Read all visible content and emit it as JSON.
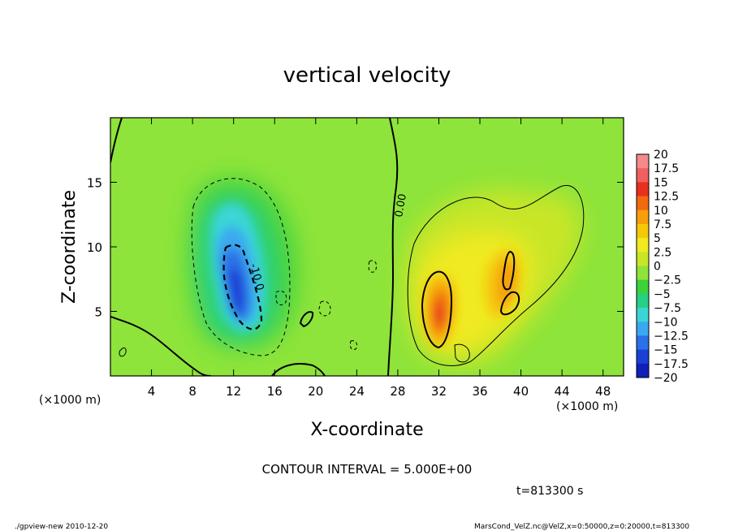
{
  "chart_data": {
    "type": "heatmap",
    "title": "vertical velocity",
    "xlabel": "X-coordinate",
    "ylabel": "Z-coordinate",
    "x_unit_note": "(×1000 m)",
    "y_unit_note": "(×1000 m)",
    "xlim": [
      0,
      50
    ],
    "ylim": [
      0,
      20
    ],
    "x_ticks": [
      4,
      8,
      12,
      16,
      20,
      24,
      28,
      32,
      36,
      40,
      44,
      48
    ],
    "y_ticks": [
      5,
      10,
      15
    ],
    "colorbar": {
      "levels": [
        20,
        17.5,
        15,
        12.5,
        10,
        7.5,
        5,
        2.5,
        0,
        -2.5,
        -5,
        -7.5,
        -10,
        -12.5,
        -15,
        -17.5,
        -20
      ],
      "colors": [
        "#f58a8a",
        "#f06060",
        "#e8301e",
        "#f06a10",
        "#f5a00a",
        "#f5c80a",
        "#f0ea20",
        "#c8e628",
        "#8ee43a",
        "#3cd23c",
        "#26d084",
        "#3ad6d6",
        "#3aa8f0",
        "#2a70e6",
        "#1a40d6",
        "#1020b8",
        "#6010b0"
      ]
    },
    "contour_labels": [
      "0.00",
      "-10.0"
    ],
    "grid": false
  },
  "footer": {
    "contour_interval": "CONTOUR INTERVAL = 5.000E+00",
    "time": "t=813300 s",
    "left_note": "./gpview-new  2010-12-20",
    "right_note": "MarsCond_VelZ.nc@VelZ,x=0:50000,z=0:20000,t=813300"
  }
}
